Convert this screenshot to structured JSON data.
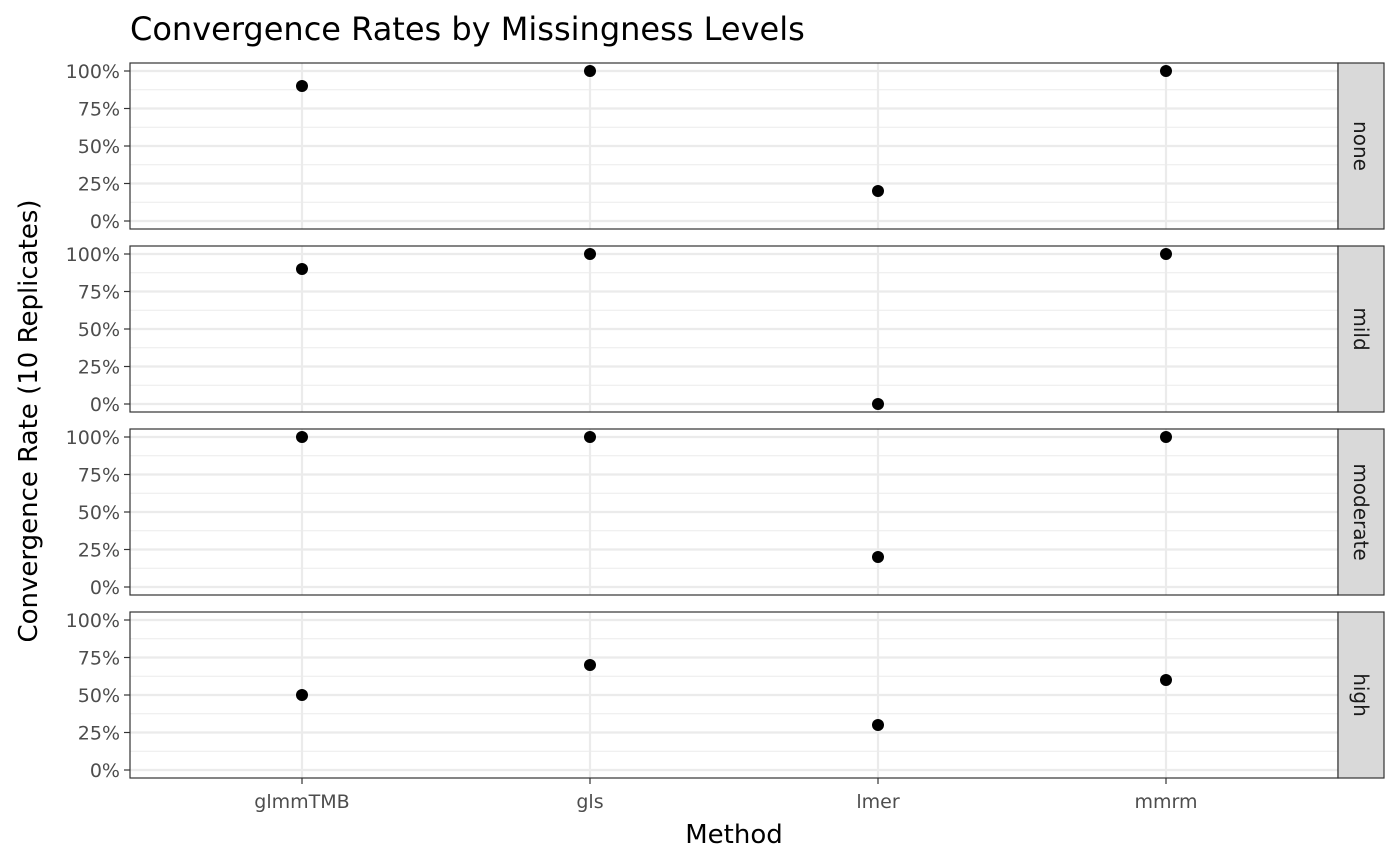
{
  "chart_data": {
    "type": "scatter",
    "title": "Convergence Rates by Missingness Levels",
    "xlabel": "Method",
    "ylabel": "Convergence Rate (10 Replicates)",
    "categories": [
      "glmmTMB",
      "gls",
      "lmer",
      "mmrm"
    ],
    "ylim": [
      0,
      1
    ],
    "y_ticks": [
      0,
      0.25,
      0.5,
      0.75,
      1
    ],
    "y_tick_labels": [
      "0%",
      "25%",
      "50%",
      "75%",
      "100%"
    ],
    "facet_strip_position": "right",
    "grid": true,
    "facets": [
      {
        "label": "none",
        "values": [
          0.9,
          1.0,
          0.2,
          1.0
        ]
      },
      {
        "label": "mild",
        "values": [
          0.9,
          1.0,
          0.0,
          1.0
        ]
      },
      {
        "label": "moderate",
        "values": [
          1.0,
          1.0,
          0.2,
          1.0
        ]
      },
      {
        "label": "high",
        "values": [
          0.5,
          0.7,
          0.3,
          0.6
        ]
      }
    ],
    "colors": {
      "point": "#000000",
      "grid": "#ebebeb",
      "strip_background": "#d9d9d9",
      "panel_border": "#333333"
    }
  }
}
